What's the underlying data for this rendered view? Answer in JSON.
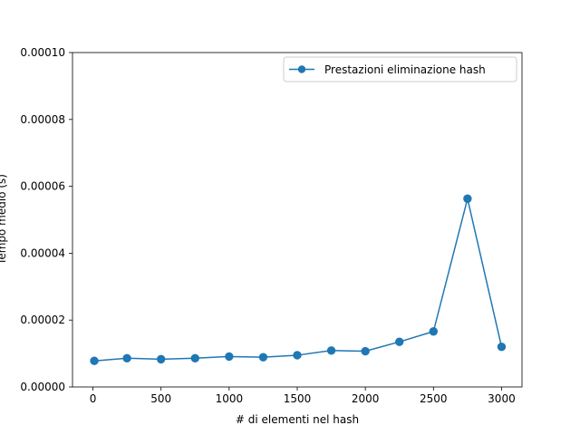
{
  "chart_data": {
    "type": "line",
    "title": "",
    "xlabel": "# di elementi nel hash",
    "ylabel": "Tempo medio (s)",
    "xlim": [
      -150,
      3150
    ],
    "ylim": [
      0,
      0.0001
    ],
    "xticks": [
      0,
      500,
      1000,
      1500,
      2000,
      2500,
      3000
    ],
    "xtick_labels": [
      "0",
      "500",
      "1000",
      "1500",
      "2000",
      "2500",
      "3000"
    ],
    "yticks": [
      0,
      2e-05,
      4e-05,
      6e-05,
      8e-05,
      0.0001
    ],
    "ytick_labels": [
      "0.00000",
      "0.00002",
      "0.00004",
      "0.00006",
      "0.00008",
      "0.00010"
    ],
    "grid": false,
    "legend_position": "upper right",
    "series": [
      {
        "name": "Prestazioni eliminazione hash",
        "color": "#1f77b4",
        "marker": "circle",
        "x": [
          10,
          250,
          500,
          750,
          1000,
          1250,
          1500,
          1750,
          2000,
          2250,
          2500,
          2750,
          3000
        ],
        "y": [
          7.8e-06,
          8.6e-06,
          8.3e-06,
          8.6e-06,
          9.1e-06,
          8.9e-06,
          9.5e-06,
          1.09e-05,
          1.07e-05,
          1.35e-05,
          1.66e-05,
          5.63e-05,
          1.2e-05
        ]
      }
    ]
  }
}
